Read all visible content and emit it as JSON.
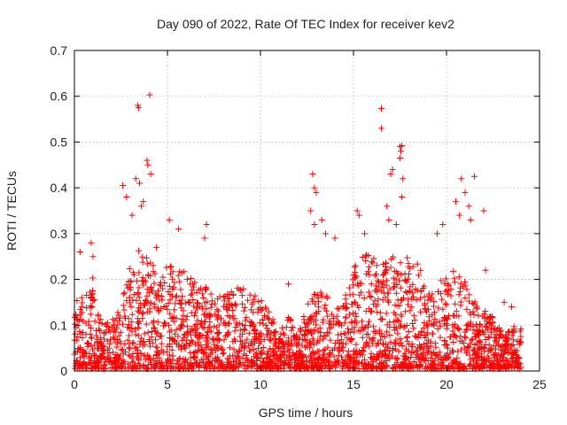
{
  "chart_data": {
    "type": "scatter",
    "title": "Day 090 of 2022, Rate Of TEC Index for receiver kev2",
    "xlabel": "GPS time / hours",
    "ylabel": "ROTI / TECUs",
    "xlim": [
      0,
      25
    ],
    "ylim": [
      0,
      0.7
    ],
    "xticks": [
      0,
      5,
      10,
      15,
      20,
      25
    ],
    "yticks": [
      0,
      0.1,
      0.2,
      0.3,
      0.4,
      0.5,
      0.6,
      0.7
    ],
    "xtick_labels": [
      "0",
      "5",
      "10",
      "15",
      "20",
      "25"
    ],
    "ytick_labels": [
      "0",
      "0.1",
      "0.2",
      "0.3",
      "0.4",
      "0.5",
      "0.6",
      "0.7"
    ],
    "grid": true,
    "marker": "+",
    "marker_color": "#ff0000",
    "series": [
      {
        "name": "ROTI",
        "envelope": {
          "x": [
            0,
            0.5,
            1,
            1.5,
            2,
            2.5,
            3,
            3.5,
            4,
            4.5,
            5,
            5.5,
            6,
            6.5,
            7,
            7.5,
            8,
            8.5,
            9,
            9.5,
            10,
            10.5,
            11,
            11.5,
            12,
            12.5,
            13,
            13.5,
            14,
            14.5,
            15,
            15.5,
            16,
            16.5,
            17,
            17.5,
            18,
            18.5,
            19,
            19.5,
            20,
            20.5,
            21,
            21.5,
            22,
            22.5,
            23,
            23.5,
            24
          ],
          "y": [
            0.15,
            0.17,
            0.2,
            0.1,
            0.11,
            0.14,
            0.24,
            0.26,
            0.25,
            0.22,
            0.24,
            0.22,
            0.21,
            0.19,
            0.18,
            0.16,
            0.16,
            0.18,
            0.18,
            0.16,
            0.16,
            0.13,
            0.08,
            0.12,
            0.07,
            0.14,
            0.17,
            0.17,
            0.13,
            0.15,
            0.22,
            0.25,
            0.25,
            0.24,
            0.25,
            0.25,
            0.24,
            0.23,
            0.18,
            0.2,
            0.2,
            0.22,
            0.19,
            0.15,
            0.13,
            0.12,
            0.08,
            0.09,
            0.1
          ]
        },
        "outliers": [
          {
            "x": 3.4,
            "y": 0.58
          },
          {
            "x": 3.45,
            "y": 0.575
          },
          {
            "x": 4.05,
            "y": 0.603
          },
          {
            "x": 3.3,
            "y": 0.42
          },
          {
            "x": 3.5,
            "y": 0.41
          },
          {
            "x": 3.7,
            "y": 0.37
          },
          {
            "x": 3.9,
            "y": 0.46
          },
          {
            "x": 3.95,
            "y": 0.45
          },
          {
            "x": 4.1,
            "y": 0.43
          },
          {
            "x": 2.6,
            "y": 0.405
          },
          {
            "x": 2.8,
            "y": 0.38
          },
          {
            "x": 3.1,
            "y": 0.34
          },
          {
            "x": 3.6,
            "y": 0.36
          },
          {
            "x": 4.4,
            "y": 0.27
          },
          {
            "x": 5.1,
            "y": 0.33
          },
          {
            "x": 5.6,
            "y": 0.31
          },
          {
            "x": 7.1,
            "y": 0.32
          },
          {
            "x": 7.0,
            "y": 0.29
          },
          {
            "x": 0.3,
            "y": 0.26
          },
          {
            "x": 0.9,
            "y": 0.28
          },
          {
            "x": 1.0,
            "y": 0.25
          },
          {
            "x": 11.5,
            "y": 0.19
          },
          {
            "x": 12.8,
            "y": 0.43
          },
          {
            "x": 12.9,
            "y": 0.4
          },
          {
            "x": 13.0,
            "y": 0.39
          },
          {
            "x": 12.7,
            "y": 0.35
          },
          {
            "x": 13.3,
            "y": 0.33
          },
          {
            "x": 13.5,
            "y": 0.3
          },
          {
            "x": 12.9,
            "y": 0.32
          },
          {
            "x": 14.0,
            "y": 0.29
          },
          {
            "x": 15.2,
            "y": 0.35
          },
          {
            "x": 15.3,
            "y": 0.34
          },
          {
            "x": 15.6,
            "y": 0.3
          },
          {
            "x": 16.5,
            "y": 0.573
          },
          {
            "x": 16.5,
            "y": 0.53
          },
          {
            "x": 17.0,
            "y": 0.43
          },
          {
            "x": 17.1,
            "y": 0.44
          },
          {
            "x": 17.5,
            "y": 0.49
          },
          {
            "x": 17.55,
            "y": 0.48
          },
          {
            "x": 17.6,
            "y": 0.492
          },
          {
            "x": 17.5,
            "y": 0.465
          },
          {
            "x": 17.65,
            "y": 0.42
          },
          {
            "x": 17.6,
            "y": 0.38
          },
          {
            "x": 16.8,
            "y": 0.36
          },
          {
            "x": 16.9,
            "y": 0.33
          },
          {
            "x": 17.3,
            "y": 0.32
          },
          {
            "x": 20.8,
            "y": 0.42
          },
          {
            "x": 21.0,
            "y": 0.39
          },
          {
            "x": 21.2,
            "y": 0.36
          },
          {
            "x": 21.5,
            "y": 0.425
          },
          {
            "x": 22.0,
            "y": 0.35
          },
          {
            "x": 20.5,
            "y": 0.37
          },
          {
            "x": 20.7,
            "y": 0.34
          },
          {
            "x": 21.3,
            "y": 0.33
          },
          {
            "x": 19.5,
            "y": 0.3
          },
          {
            "x": 19.8,
            "y": 0.32
          },
          {
            "x": 22.1,
            "y": 0.22
          },
          {
            "x": 23.1,
            "y": 0.15
          },
          {
            "x": 23.5,
            "y": 0.14
          }
        ]
      }
    ]
  }
}
